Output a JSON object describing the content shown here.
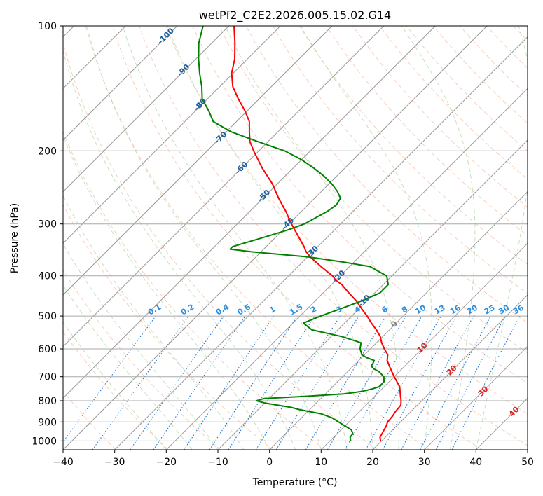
{
  "chart_data": {
    "type": "line",
    "subtype": "skew-t log-p diagram",
    "title": "wetPf2_C2E2.2026.005.15.02.G14",
    "xlabel": "Temperature (°C)",
    "ylabel": "Pressure (hPa)",
    "xlim": [
      -40,
      50
    ],
    "ylim": [
      1050,
      100
    ],
    "x_ticks": [
      -40,
      -30,
      -20,
      -10,
      0,
      10,
      20,
      30,
      40,
      50
    ],
    "y_ticks": [
      100,
      200,
      300,
      400,
      500,
      600,
      700,
      800,
      900,
      1000
    ],
    "grid": true,
    "skewed_isotherm_labels": [
      -100,
      -90,
      -80,
      -70,
      -60,
      -50,
      -40,
      -30,
      -20,
      -10,
      0,
      10,
      20,
      30,
      40
    ],
    "mixing_ratio_labels": [
      "0.1",
      "0.2",
      "0.4",
      "0.6",
      "1",
      "1.5",
      "2",
      "3",
      "4",
      "6",
      "8",
      "10",
      "13",
      "16",
      "20",
      "25",
      "30",
      "36"
    ],
    "series": [
      {
        "name": "Temperature",
        "color": "#ff0000",
        "pressure": [
          1000,
          980,
          950,
          920,
          900,
          870,
          850,
          820,
          800,
          780,
          760,
          740,
          720,
          700,
          680,
          660,
          640,
          620,
          600,
          580,
          560,
          540,
          520,
          500,
          480,
          460,
          440,
          420,
          410,
          400,
          390,
          380,
          370,
          360,
          350,
          340,
          320,
          300,
          280,
          260,
          240,
          220,
          200,
          190,
          180,
          170,
          160,
          150,
          140,
          130,
          120,
          110,
          100
        ],
        "temperature": [
          19.8,
          19.0,
          18.5,
          18.0,
          17.5,
          17.3,
          17.0,
          16.8,
          16.0,
          15.0,
          14.0,
          13.0,
          11.5,
          10.0,
          8.5,
          7.0,
          5.5,
          4.5,
          2.7,
          1.0,
          -0.5,
          -2.5,
          -4.8,
          -7.0,
          -9.5,
          -12.0,
          -15.0,
          -18.0,
          -20.0,
          -21.5,
          -23.5,
          -25.5,
          -27.5,
          -29.5,
          -31.3,
          -32.7,
          -36.0,
          -39.5,
          -43.0,
          -47.0,
          -51.0,
          -56.0,
          -61.0,
          -63.5,
          -65.5,
          -67.5,
          -70.5,
          -74.0,
          -77.5,
          -80.3,
          -82.5,
          -85.5,
          -89.0
        ]
      },
      {
        "name": "Dewpoint",
        "color": "#008000",
        "pressure": [
          1000,
          980,
          960,
          940,
          920,
          900,
          880,
          860,
          850,
          840,
          830,
          820,
          810,
          800,
          790,
          780,
          770,
          760,
          750,
          740,
          730,
          720,
          700,
          680,
          670,
          660,
          650,
          640,
          630,
          620,
          600,
          580,
          560,
          540,
          520,
          500,
          480,
          460,
          440,
          420,
          400,
          390,
          380,
          370,
          360,
          350,
          345,
          340,
          330,
          320,
          310,
          300,
          290,
          280,
          270,
          260,
          250,
          240,
          230,
          220,
          210,
          200,
          190,
          180,
          170,
          160,
          150,
          140,
          130,
          120,
          110,
          100
        ],
        "dewpoint": [
          14.0,
          13.2,
          13.0,
          12.0,
          10.0,
          8.0,
          6.0,
          3.0,
          0.5,
          -2.0,
          -4.0,
          -7.0,
          -10.0,
          -12.0,
          -11.0,
          -3.0,
          3.5,
          6.5,
          8.0,
          9.0,
          9.0,
          9.0,
          8.0,
          6.0,
          4.5,
          3.5,
          3.3,
          3.0,
          1.0,
          -0.5,
          -2.0,
          -3.0,
          -8.0,
          -15.0,
          -18.0,
          -16.0,
          -13.5,
          -11.0,
          -9.0,
          -9.0,
          -11.0,
          -13.5,
          -16.0,
          -22.5,
          -30.0,
          -42.0,
          -46.5,
          -46.5,
          -44.0,
          -41.5,
          -39.0,
          -37.0,
          -36.0,
          -35.0,
          -34.5,
          -35.0,
          -37.0,
          -39.5,
          -42.5,
          -46.0,
          -50.0,
          -55.0,
          -62.0,
          -69.0,
          -74.5,
          -77.5,
          -81.0,
          -83.5,
          -86.5,
          -89.5,
          -92.5,
          -95.0
        ]
      }
    ]
  }
}
